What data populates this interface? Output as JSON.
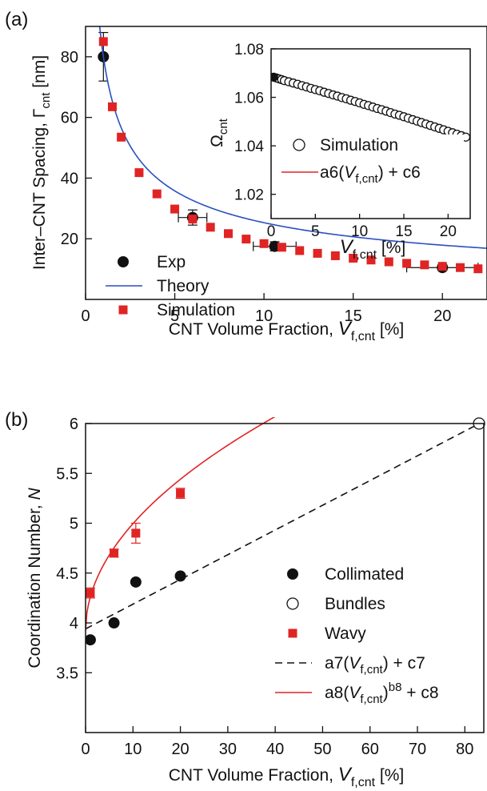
{
  "chart_data": [
    {
      "panel": "(a)",
      "type": "scatter",
      "xlabel": {
        "main": "CNT Volume Fraction, ",
        "var": "V",
        "sub": "f,cnt",
        "unit": " [%]"
      },
      "ylabel": {
        "main": "Inter–CNT Spacing, Γ",
        "sub": "cnt",
        "unit": " [nm]"
      },
      "xlim": [
        0,
        22.5
      ],
      "ylim": [
        0,
        90
      ],
      "xticks": [
        "0",
        "5",
        "10",
        "15",
        "20"
      ],
      "yticks": [
        "20",
        "40",
        "60",
        "80"
      ],
      "grid": false,
      "legend_position": "bottom-left",
      "series": [
        {
          "name": "Exp",
          "kind": "points",
          "marker": "filled-circle",
          "color": "#111111",
          "x": [
            1,
            6,
            10.6,
            20
          ],
          "y": [
            80,
            27,
            17.5,
            10.5
          ],
          "yerr": [
            8,
            2.5,
            1.5,
            1
          ],
          "xerr": [
            0,
            0.8,
            1.2,
            2
          ]
        },
        {
          "name": "Theory",
          "kind": "line",
          "color": "#2a4fbf",
          "formula": "y = 80 / sqrt(x)",
          "x_range": [
            0.78,
            22.5
          ]
        },
        {
          "name": "Simulation",
          "kind": "points",
          "marker": "filled-square",
          "color": "#e02424",
          "x": [
            1,
            1.5,
            2,
            3,
            4,
            5,
            6,
            7,
            8,
            9,
            10,
            11,
            12,
            13,
            14,
            15,
            16,
            17,
            18,
            19,
            20,
            21,
            22
          ],
          "y": [
            85,
            63.5,
            53.5,
            41.8,
            34.8,
            29.8,
            26.5,
            23.8,
            21.7,
            19.9,
            18.4,
            17.2,
            16.1,
            15.2,
            14.4,
            13.6,
            13,
            12.4,
            11.9,
            11.4,
            10.9,
            10.5,
            10.1
          ]
        }
      ],
      "inset": {
        "ylabel": {
          "main": "Ω",
          "sub": "cnt"
        },
        "xlabel": {
          "var": "V",
          "sub": "f,cnt",
          "unit": " [%]"
        },
        "xlim": [
          0,
          22.5
        ],
        "ylim": [
          1.01,
          1.08
        ],
        "xticks": [
          "0",
          "5",
          "10",
          "15",
          "20"
        ],
        "yticks": [
          "1.02",
          "1.04",
          "1.06",
          "1.08"
        ],
        "series": [
          {
            "name": "Simulation",
            "kind": "points",
            "marker": "open-circle",
            "color": "#111111",
            "x": [
              0.3,
              0.6,
              0.9,
              1.2,
              1.5,
              2,
              2.5,
              3,
              3.5,
              4,
              4.5,
              5,
              5.5,
              6,
              6.5,
              7,
              7.5,
              8,
              8.5,
              9,
              9.5,
              10,
              10.5,
              11,
              11.5,
              12,
              12.5,
              13,
              13.5,
              14,
              14.5,
              15,
              15.5,
              16,
              16.5,
              17,
              17.5,
              18,
              18.5,
              19,
              19.5,
              20,
              20.5,
              21,
              21.5,
              22
            ],
            "y": [
              1.0683,
              1.068,
              1.0676,
              1.0673,
              1.0669,
              1.0664,
              1.0659,
              1.0654,
              1.0648,
              1.0643,
              1.0637,
              1.0632,
              1.0627,
              1.0621,
              1.0616,
              1.061,
              1.0605,
              1.0599,
              1.0594,
              1.0588,
              1.0583,
              1.0577,
              1.0571,
              1.0566,
              1.056,
              1.0554,
              1.0549,
              1.0543,
              1.0537,
              1.0531,
              1.0526,
              1.052,
              1.0514,
              1.0508,
              1.0502,
              1.0496,
              1.049,
              1.0484,
              1.0478,
              1.0472,
              1.0466,
              1.046,
              1.0454,
              1.0448,
              1.0442,
              1.0436
            ]
          },
          {
            "name": "Simulation-filled",
            "kind": "points",
            "marker": "filled-circle",
            "color": "#111111",
            "x": [
              0.15,
              0.35
            ],
            "y": [
              1.0684,
              1.0683
            ]
          },
          {
            "name": "a6(V_f,cnt) + c6",
            "kind": "line",
            "color": "#e02424",
            "formula": "y = 1.0688 - 0.00114*x - 0.0000006*x^2",
            "x_range": [
              0,
              22.5
            ]
          }
        ],
        "legend": [
          {
            "text": "Simulation",
            "marker": "open-circle"
          },
          {
            "pre": "a6(",
            "var": "V",
            "sub": "f,cnt",
            "post": ") + c6",
            "marker": "red-line"
          }
        ]
      },
      "legend": [
        {
          "text": "Exp",
          "marker": "filled-circle"
        },
        {
          "text": "Theory",
          "marker": "blue-line"
        },
        {
          "text": "Simulation",
          "marker": "red-square"
        }
      ]
    },
    {
      "panel": "(b)",
      "type": "scatter",
      "xlabel": {
        "main": "CNT Volume Fraction, ",
        "var": "V",
        "sub": "f,cnt",
        "unit": " [%]"
      },
      "ylabel": {
        "main": "Coordination Number, ",
        "var": "N"
      },
      "xlim": [
        0,
        84
      ],
      "ylim": [
        2.9,
        6
      ],
      "xticks": [
        "0",
        "10",
        "20",
        "30",
        "40",
        "50",
        "60",
        "70",
        "80"
      ],
      "yticks": [
        "3.5",
        "4",
        "4.5",
        "5",
        "5.5",
        "6"
      ],
      "grid": false,
      "legend_position": "bottom-right",
      "series": [
        {
          "name": "Collimated",
          "kind": "points",
          "marker": "filled-circle",
          "color": "#111111",
          "x": [
            1,
            6,
            10.6,
            20
          ],
          "y": [
            3.83,
            4.0,
            4.41,
            4.47
          ]
        },
        {
          "name": "Bundles",
          "kind": "points",
          "marker": "open-circle",
          "color": "#111111",
          "x": [
            83
          ],
          "y": [
            6.0
          ]
        },
        {
          "name": "Wavy",
          "kind": "points",
          "marker": "filled-square",
          "color": "#e02424",
          "x": [
            1,
            6,
            10.6,
            20
          ],
          "y": [
            4.3,
            4.7,
            4.9,
            5.3
          ],
          "yerr": [
            0.05,
            0.04,
            0.1,
            0.05
          ]
        },
        {
          "name": "a7(V_f,cnt) + c7",
          "kind": "line",
          "dash": true,
          "color": "#111111",
          "formula": "y = 3.94 + 0.0248*x",
          "x_range": [
            0,
            84
          ]
        },
        {
          "name": "a8(V_f,cnt)^b8 + c8",
          "kind": "line",
          "color": "#e02424",
          "formula": "y = 3.92 + 0.34*x^0.5",
          "x_range": [
            0,
            84
          ]
        }
      ],
      "legend": [
        {
          "text": "Collimated",
          "marker": "filled-circle"
        },
        {
          "text": "Bundles",
          "marker": "open-circle"
        },
        {
          "text": "Wavy",
          "marker": "red-square"
        },
        {
          "pre": "a7(",
          "var": "V",
          "sub": "f,cnt",
          "post": ") + c7",
          "marker": "black-dash"
        },
        {
          "pre": "a8(",
          "var": "V",
          "sub": "f,cnt",
          "post": ")",
          "sup": "b8",
          "post2": " + c8",
          "marker": "red-line"
        }
      ]
    }
  ]
}
